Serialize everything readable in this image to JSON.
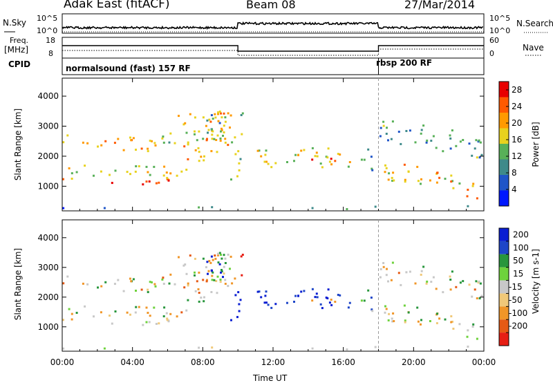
{
  "header": {
    "station": "Adak East (fitACF)",
    "beam": "Beam 08",
    "date": "27/Mar/2014"
  },
  "top_panels": {
    "nsky_label": "N.Sky",
    "nsky_ticks": [
      "10^5",
      "10^0"
    ],
    "nsearch_label": "N.Search",
    "freq_label": "Freq.",
    "freq_unit": "[MHz]",
    "freq_ticks": [
      "18",
      "8"
    ],
    "nave_label": "Nave",
    "nave_ticks": [
      "60",
      "0"
    ],
    "cpid_label": "CPID",
    "cpid_segments": [
      "normalsound (fast) 157 RF",
      "rbsp 200 RF"
    ]
  },
  "colors": {
    "power_scale": [
      "#0018ff",
      "#1f55c8",
      "#3e8a8a",
      "#58b058",
      "#e8d21e",
      "#ff9a00",
      "#ff5a00",
      "#e80000"
    ],
    "velocity_scale": [
      "#0a1ed2",
      "#1e46c8",
      "#28963c",
      "#6ed23c",
      "#c8c8c8",
      "#f0c878",
      "#f09628",
      "#e65a14",
      "#e61e14"
    ]
  },
  "chart_data": [
    {
      "type": "heatmap",
      "name": "power",
      "xlabel": "",
      "ylabel": "Slant Range [km]",
      "x_ticks": [
        "00:00",
        "04:00",
        "08:00",
        "12:00",
        "16:00",
        "20:00",
        "00:00"
      ],
      "xlim_hours": [
        0,
        24
      ],
      "y_ticks": [
        "1000",
        "2000",
        "3000",
        "4000"
      ],
      "ylim": [
        180,
        4600
      ],
      "colorbar_label": "Power [dB]",
      "colorbar_ticks": [
        "4",
        "8",
        "12",
        "16",
        "20",
        "24",
        "28"
      ],
      "colorbar_range": [
        0,
        30
      ]
    },
    {
      "type": "heatmap",
      "name": "velocity",
      "xlabel": "Time UT",
      "ylabel": "Slant Range [km]",
      "x_ticks": [
        "00:00",
        "04:00",
        "08:00",
        "12:00",
        "16:00",
        "20:00",
        "00:00"
      ],
      "xlim_hours": [
        0,
        24
      ],
      "y_ticks": [
        "1000",
        "2000",
        "3000",
        "4000"
      ],
      "ylim": [
        180,
        4600
      ],
      "colorbar_label": "Velocity [m s-1]",
      "colorbar_ticks": [
        "200",
        "100",
        "50",
        "15",
        "-15",
        "-50",
        "-100",
        "-200"
      ],
      "colorbar_range": [
        -250,
        250
      ]
    }
  ]
}
